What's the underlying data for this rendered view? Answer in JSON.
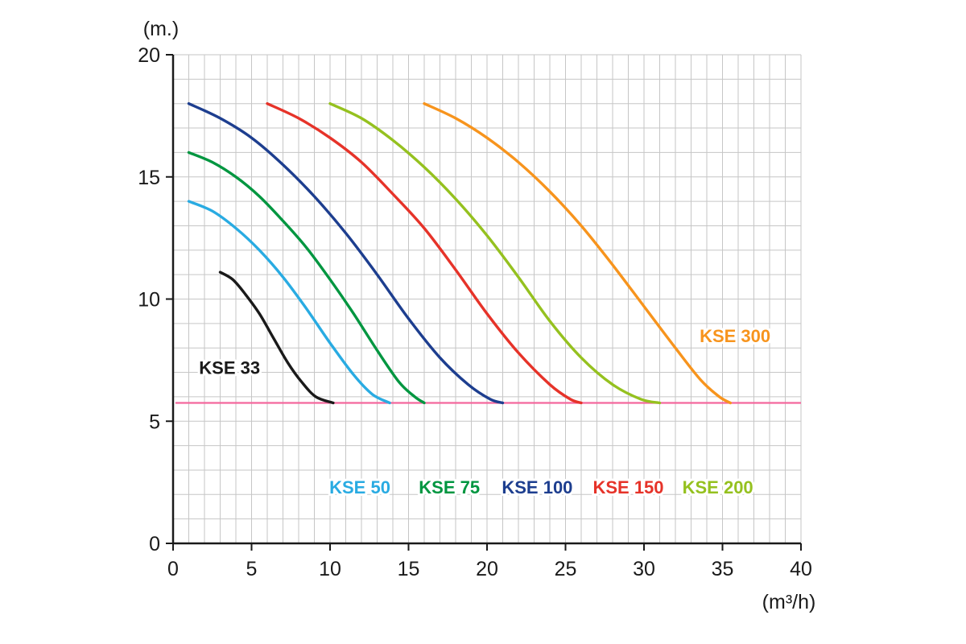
{
  "colors": {
    "background": "#ffffff",
    "grid": "#c6c6c6",
    "axis": "#1a1a1a",
    "text": "#1a1a1a"
  },
  "chart_data": {
    "type": "line",
    "title": "",
    "xlabel": "(m³/h)",
    "ylabel": "(m.)",
    "xlim": [
      0,
      40
    ],
    "ylim": [
      0,
      20
    ],
    "x_ticks": [
      0,
      5,
      10,
      15,
      20,
      25,
      30,
      35,
      40
    ],
    "y_ticks": [
      0,
      5,
      10,
      15,
      20
    ],
    "grid": "minor gridlines every 1 unit in both directions",
    "legend_position": "colored labels placed beside/below curves",
    "reference_line": {
      "name": "minimum-head-line",
      "y": 5.75,
      "color": "#f4679d",
      "x_start": 0.15,
      "x_end": 40
    },
    "series": [
      {
        "name": "KSE 33",
        "color": "#1a1a1a",
        "label_pos": [
          3.6,
          7.2
        ],
        "points": [
          [
            3,
            11.1
          ],
          [
            3.8,
            10.8
          ],
          [
            4.6,
            10.2
          ],
          [
            5.5,
            9.4
          ],
          [
            6.4,
            8.4
          ],
          [
            7.3,
            7.4
          ],
          [
            8.2,
            6.6
          ],
          [
            9.1,
            6.0
          ],
          [
            10.2,
            5.75
          ]
        ]
      },
      {
        "name": "KSE 50",
        "color": "#29abe2",
        "label_pos": [
          11.9,
          2.3
        ],
        "points": [
          [
            1,
            14
          ],
          [
            2.5,
            13.6
          ],
          [
            4,
            12.9
          ],
          [
            5.5,
            12.0
          ],
          [
            7,
            10.9
          ],
          [
            8.5,
            9.6
          ],
          [
            10,
            8.2
          ],
          [
            11.5,
            6.9
          ],
          [
            12.7,
            6.1
          ],
          [
            13.8,
            5.75
          ]
        ]
      },
      {
        "name": "KSE 75",
        "color": "#009640",
        "label_pos": [
          17.6,
          2.3
        ],
        "points": [
          [
            1,
            16
          ],
          [
            2.5,
            15.6
          ],
          [
            4,
            15.0
          ],
          [
            5.5,
            14.2
          ],
          [
            7,
            13.2
          ],
          [
            8.5,
            12.1
          ],
          [
            10,
            10.8
          ],
          [
            11.5,
            9.4
          ],
          [
            13,
            7.9
          ],
          [
            14.4,
            6.6
          ],
          [
            15.4,
            6.0
          ],
          [
            16,
            5.75
          ]
        ]
      },
      {
        "name": "KSE 100",
        "color": "#1d3e8f",
        "label_pos": [
          23.2,
          2.3
        ],
        "points": [
          [
            1,
            18
          ],
          [
            3,
            17.4
          ],
          [
            5,
            16.6
          ],
          [
            7,
            15.5
          ],
          [
            9,
            14.2
          ],
          [
            11,
            12.7
          ],
          [
            13,
            11.0
          ],
          [
            15,
            9.2
          ],
          [
            17,
            7.6
          ],
          [
            18.8,
            6.5
          ],
          [
            20.2,
            5.9
          ],
          [
            21,
            5.75
          ]
        ]
      },
      {
        "name": "KSE 150",
        "color": "#e63329",
        "label_pos": [
          29.0,
          2.3
        ],
        "points": [
          [
            6,
            18
          ],
          [
            8,
            17.4
          ],
          [
            10,
            16.6
          ],
          [
            12,
            15.6
          ],
          [
            14,
            14.3
          ],
          [
            16,
            12.9
          ],
          [
            18,
            11.2
          ],
          [
            20,
            9.4
          ],
          [
            22,
            7.8
          ],
          [
            24,
            6.5
          ],
          [
            25.3,
            5.9
          ],
          [
            26,
            5.75
          ]
        ]
      },
      {
        "name": "KSE 200",
        "color": "#95c11f",
        "label_pos": [
          34.7,
          2.3
        ],
        "points": [
          [
            10,
            18
          ],
          [
            12,
            17.4
          ],
          [
            14,
            16.5
          ],
          [
            16,
            15.4
          ],
          [
            18,
            14.1
          ],
          [
            20,
            12.6
          ],
          [
            22,
            10.9
          ],
          [
            24,
            9.1
          ],
          [
            26,
            7.6
          ],
          [
            28,
            6.5
          ],
          [
            29.8,
            5.9
          ],
          [
            31,
            5.75
          ]
        ]
      },
      {
        "name": "KSE 300",
        "color": "#f7941d",
        "label_pos": [
          35.8,
          8.5
        ],
        "points": [
          [
            16,
            18
          ],
          [
            18,
            17.4
          ],
          [
            20,
            16.6
          ],
          [
            22,
            15.6
          ],
          [
            24,
            14.4
          ],
          [
            26,
            13.0
          ],
          [
            28,
            11.4
          ],
          [
            30,
            9.7
          ],
          [
            32,
            8.0
          ],
          [
            33.6,
            6.7
          ],
          [
            34.8,
            6.0
          ],
          [
            35.5,
            5.75
          ]
        ]
      }
    ]
  }
}
